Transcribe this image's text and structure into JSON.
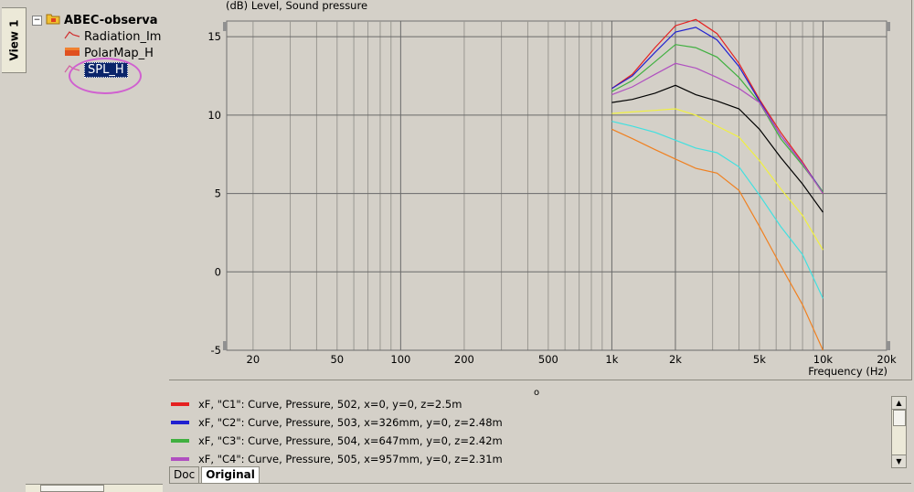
{
  "view_tab": "View 1",
  "tree": {
    "root": "ABEC-observa",
    "children": [
      "Radiation_Im",
      "PolarMap_H",
      "SPL_H"
    ],
    "expander_symbol": "−",
    "selected_index": 2
  },
  "chart_data": {
    "type": "line",
    "title": "(dB)  Level, Sound pressure",
    "xlabel": "Frequency  (Hz)",
    "ylabel": "(dB)  Level, Sound pressure",
    "xscale": "log",
    "xlim": [
      15,
      20000
    ],
    "ylim": [
      -5,
      16
    ],
    "x_tick_values": [
      20,
      50,
      100,
      200,
      500,
      1000,
      2000,
      5000,
      10000,
      20000
    ],
    "x_tick_labels": [
      "20",
      "50",
      "100",
      "200",
      "500",
      "1k",
      "2k",
      "5k",
      "10k",
      "20k"
    ],
    "y_tick_values": [
      -5,
      0,
      5,
      10,
      15
    ],
    "y_tick_labels": [
      "-5",
      "0",
      "5",
      "10",
      "15"
    ],
    "grid": true,
    "legend_position": "bottom",
    "x": [
      1000,
      1250,
      1600,
      2000,
      2500,
      3150,
      4000,
      5000,
      6300,
      8000,
      10000
    ],
    "series": [
      {
        "name": "xF, \"C1\": Curve, Pressure, 502, x=0, y=0, z=2.5m",
        "color": "#e52020",
        "values": [
          11.7,
          12.6,
          14.3,
          15.7,
          16.1,
          15.2,
          13.3,
          11.0,
          8.9,
          7.0,
          5.0
        ]
      },
      {
        "name": "xF, \"C2\": Curve, Pressure, 503, x=326mm, y=0, z=2.48m",
        "color": "#2020d0",
        "values": [
          11.7,
          12.5,
          14.0,
          15.3,
          15.6,
          14.8,
          13.1,
          10.9,
          8.7,
          6.9,
          5.1
        ]
      },
      {
        "name": "xF, \"C3\": Curve, Pressure, 504, x=647mm, y=0, z=2.42m",
        "color": "#40b040",
        "values": [
          11.5,
          12.2,
          13.4,
          14.5,
          14.3,
          13.7,
          12.4,
          10.8,
          8.5,
          6.8,
          5.1
        ]
      },
      {
        "name": "xF, \"C4\": Curve, Pressure, 505, x=957mm, y=0, z=2.31m",
        "color": "#b050c0",
        "values": [
          11.3,
          11.8,
          12.6,
          13.3,
          13.0,
          12.4,
          11.7,
          10.8,
          8.7,
          6.9,
          5.0
        ]
      },
      {
        "color": "#000000",
        "values": [
          10.8,
          11.0,
          11.4,
          11.9,
          11.3,
          10.9,
          10.4,
          9.1,
          7.3,
          5.6,
          3.8
        ]
      },
      {
        "color": "#f0f040",
        "values": [
          10.1,
          10.2,
          10.3,
          10.4,
          10.0,
          9.3,
          8.6,
          7.1,
          5.3,
          3.6,
          1.4
        ]
      },
      {
        "color": "#40e0e0",
        "values": [
          9.6,
          9.3,
          8.9,
          8.4,
          7.9,
          7.6,
          6.7,
          4.9,
          2.9,
          1.1,
          -1.7
        ]
      },
      {
        "color": "#f08020",
        "values": [
          9.1,
          8.5,
          7.8,
          7.2,
          6.6,
          6.3,
          5.2,
          2.9,
          0.4,
          -2.1,
          -5.0
        ]
      }
    ]
  },
  "center_marker": "o",
  "bottom_tabs": [
    "Doc",
    "Original"
  ],
  "active_bottom_tab": "Original",
  "scroll_arrows": {
    "up": "▲",
    "down": "▼"
  }
}
